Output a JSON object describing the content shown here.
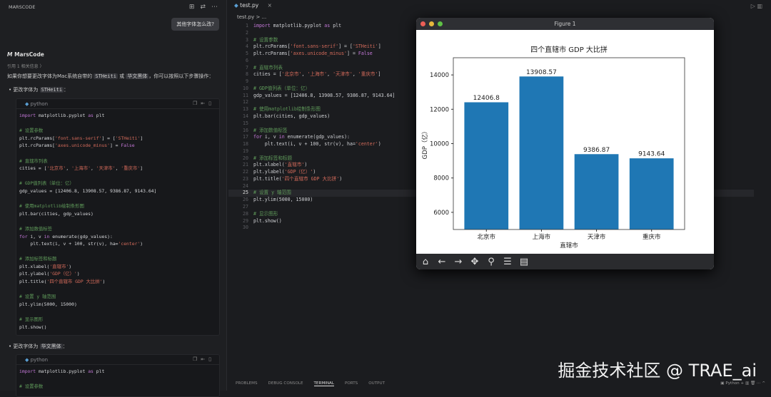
{
  "left": {
    "header": "MARSCODE",
    "header_icons": [
      "new-chat-icon",
      "swap-icon",
      "more-icon"
    ],
    "user_message": "其他字体怎么改?",
    "bot_name": "MarsCode",
    "reference": "引用 1 相关信息 〉",
    "intro": [
      "如果你想要更改字体为Mac系统自带的 ",
      "STHeiti",
      " 或 ",
      "华文黑体",
      "，你可以按照以下步骤操作："
    ],
    "bullet1": [
      "更改字体为 ",
      "STHeiti",
      "："
    ],
    "bullet2": [
      "更改字体为 ",
      "华文黑体",
      "："
    ],
    "lang": "python",
    "code1": [
      "import matplotlib.pyplot as plt",
      "",
      "# 设置参数",
      "plt.rcParams['font.sans-serif'] = ['STHeiti']",
      "plt.rcParams['axes.unicode_minus'] = False",
      "",
      "# 直辖市列表",
      "cities = ['北京市', '上海市', '天津市', '重庆市']",
      "",
      "# GDP值列表（单位：亿）",
      "gdp_values = [12406.8, 13908.57, 9386.87, 9143.64]",
      "",
      "# 使用matplotlib绘制条形图",
      "plt.bar(cities, gdp_values)",
      "",
      "# 添加数值标签",
      "for i, v in enumerate(gdp_values):",
      "    plt.text(i, v + 100, str(v), ha='center')",
      "",
      "# 添加标签和标题",
      "plt.xlabel('直辖市')",
      "plt.ylabel('GDP（亿）')",
      "plt.title('四个直辖市 GDP 大比拼')",
      "",
      "# 设置 y 轴范围",
      "plt.ylim(5000, 15000)",
      "",
      "# 显示图形",
      "plt.show()"
    ],
    "code2": [
      "import matplotlib.pyplot as plt",
      "",
      "# 设置参数"
    ]
  },
  "editor": {
    "tab": "test.py",
    "breadcrumb": "test.py > ...",
    "active_line": 25,
    "lines": [
      "import matplotlib.pyplot as plt",
      "",
      "# 设置参数",
      "plt.rcParams['font.sans-serif'] = ['STHeiti']",
      "plt.rcParams['axes.unicode_minus'] = False",
      "",
      "# 直辖市列表",
      "cities = ['北京市', '上海市', '天津市', '重庆市']",
      "",
      "# GDP值列表（单位：亿）",
      "gdp_values = [12406.8, 13908.57, 9386.87, 9143.64]",
      "",
      "# 使用matplotlib绘制条形图",
      "plt.bar(cities, gdp_values)",
      "",
      "# 添加数值标签",
      "for i, v in enumerate(gdp_values):",
      "    plt.text(i, v + 100, str(v), ha='center')",
      "",
      "# 添加标签和标题",
      "plt.xlabel('直辖市')",
      "plt.ylabel('GDP（亿）')",
      "plt.title('四个直辖市 GDP 大比拼')",
      "",
      "# 设置 y 轴范围",
      "plt.ylim(5000, 15000)",
      "",
      "# 显示图形",
      "plt.show()",
      ""
    ]
  },
  "panel": {
    "tabs": [
      "PROBLEMS",
      "DEBUG CONSOLE",
      "TERMINAL",
      "PORTS",
      "OUTPUT"
    ],
    "active": "TERMINAL",
    "terminal": "Python"
  },
  "watermark": "掘金技术社区 @ TRAE_ai",
  "figure": {
    "window_title": "Figure 1",
    "toolbar": [
      "home-icon",
      "back-icon",
      "forward-icon",
      "pan-icon",
      "zoom-icon",
      "configure-icon",
      "save-icon"
    ]
  },
  "chart_data": {
    "type": "bar",
    "title": "四个直辖市 GDP 大比拼",
    "xlabel": "直辖市",
    "ylabel": "GDP（亿）",
    "categories": [
      "北京市",
      "上海市",
      "天津市",
      "重庆市"
    ],
    "values": [
      12406.8,
      13908.57,
      9386.87,
      9143.64
    ],
    "data_labels": [
      "12406.8",
      "13908.57",
      "9386.87",
      "9143.64"
    ],
    "ylim": [
      5000,
      15000
    ],
    "yticks": [
      6000,
      8000,
      10000,
      12000,
      14000
    ],
    "color": "#1f77b4",
    "grid": false
  }
}
